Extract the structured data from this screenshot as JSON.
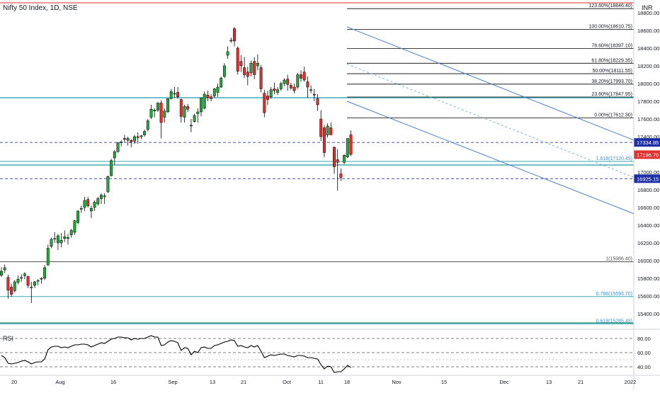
{
  "header": {
    "title": "Nifty 50 Index, 1D, NSE",
    "currency": "INR"
  },
  "theme": {
    "up": "#22ab3a",
    "down": "#e0312e",
    "outline": "#000000",
    "hline_teal": "#1c9aa6",
    "hline_blue": "#2962ff",
    "channel": "#4a7fc8",
    "fib": "#000000",
    "fib_ext": "#3c8ed4",
    "rsi": "#000000",
    "grid": "#bbbbbb"
  },
  "chart_data": {
    "type": "candlestick",
    "title": "Nifty 50 Index, 1D, NSE",
    "ylabel": "INR",
    "ylim": [
      15250,
      18950
    ],
    "yticks": [
      "15400.00",
      "15600.00",
      "15800.00",
      "16000.00",
      "16200.00",
      "16400.00",
      "16600.00",
      "16800.00",
      "17000.00",
      "17200.00",
      "17400.00",
      "17600.00",
      "17800.00",
      "18000.00",
      "18200.00",
      "18400.00",
      "18600.00",
      "18800.00"
    ],
    "xticks": [
      "20",
      "Aug",
      "16",
      "Sep",
      "13",
      "21",
      "Oct",
      "11",
      "18",
      "Nov",
      "15",
      "Dec",
      "13",
      "21",
      "2022"
    ],
    "candles": [
      [
        15835,
        15925,
        15815,
        15880
      ],
      [
        15895,
        15955,
        15860,
        15920
      ],
      [
        15810,
        15840,
        15570,
        15665
      ],
      [
        15700,
        15740,
        15590,
        15620
      ],
      [
        15660,
        15780,
        15640,
        15760
      ],
      [
        15755,
        15830,
        15730,
        15790
      ],
      [
        15800,
        15845,
        15760,
        15810
      ],
      [
        15830,
        15870,
        15790,
        15850
      ],
      [
        15820,
        15830,
        15690,
        15720
      ],
      [
        15700,
        15760,
        15520,
        15700
      ],
      [
        15720,
        15770,
        15690,
        15760
      ],
      [
        15770,
        15790,
        15720,
        15775
      ],
      [
        15800,
        15810,
        15740,
        15790
      ],
      [
        15800,
        15950,
        15780,
        15920
      ],
      [
        15950,
        16180,
        15940,
        16140
      ],
      [
        16160,
        16260,
        16140,
        16240
      ],
      [
        16250,
        16320,
        16200,
        16250
      ],
      [
        16200,
        16300,
        16120,
        16280
      ],
      [
        16200,
        16310,
        16150,
        16230
      ],
      [
        16250,
        16340,
        16210,
        16270
      ],
      [
        16250,
        16300,
        16180,
        16260
      ],
      [
        16290,
        16360,
        16260,
        16340
      ],
      [
        16320,
        16460,
        16290,
        16450
      ],
      [
        16430,
        16570,
        16410,
        16560
      ],
      [
        16580,
        16620,
        16540,
        16590
      ],
      [
        16600,
        16720,
        16560,
        16680
      ],
      [
        16690,
        16720,
        16600,
        16620
      ],
      [
        16560,
        16620,
        16480,
        16590
      ],
      [
        16600,
        16680,
        16560,
        16660
      ],
      [
        16640,
        16720,
        16620,
        16700
      ],
      [
        16700,
        16760,
        16640,
        16740
      ],
      [
        16720,
        16760,
        16640,
        16730
      ],
      [
        16780,
        16960,
        16760,
        16950
      ],
      [
        16960,
        17150,
        16950,
        17130
      ],
      [
        17160,
        17250,
        17080,
        17230
      ],
      [
        17230,
        17340,
        17220,
        17330
      ],
      [
        17330,
        17360,
        17290,
        17340
      ],
      [
        17380,
        17420,
        17340,
        17370
      ],
      [
        17360,
        17400,
        17300,
        17380
      ],
      [
        17360,
        17370,
        17280,
        17340
      ],
      [
        17350,
        17420,
        17320,
        17400
      ],
      [
        17400,
        17450,
        17320,
        17390
      ],
      [
        17400,
        17420,
        17370,
        17410
      ],
      [
        17420,
        17480,
        17400,
        17460
      ],
      [
        17480,
        17600,
        17460,
        17580
      ],
      [
        17620,
        17760,
        17600,
        17710
      ],
      [
        17690,
        17720,
        17620,
        17700
      ],
      [
        17700,
        17790,
        17680,
        17780
      ],
      [
        17780,
        17810,
        17380,
        17560
      ],
      [
        17620,
        17720,
        17560,
        17690
      ],
      [
        17680,
        17830,
        17670,
        17830
      ],
      [
        17830,
        17940,
        17820,
        17910
      ],
      [
        17880,
        17960,
        17840,
        17890
      ],
      [
        17900,
        17960,
        17830,
        17850
      ],
      [
        17820,
        17830,
        17560,
        17630
      ],
      [
        17620,
        17760,
        17560,
        17740
      ],
      [
        17740,
        17770,
        17680,
        17710
      ],
      [
        17520,
        17600,
        17450,
        17530
      ],
      [
        17570,
        17660,
        17560,
        17640
      ],
      [
        17660,
        17720,
        17560,
        17680
      ],
      [
        17680,
        17840,
        17630,
        17840
      ],
      [
        17720,
        17910,
        17710,
        17880
      ],
      [
        17870,
        17920,
        17800,
        17840
      ],
      [
        17850,
        17880,
        17800,
        17830
      ],
      [
        17860,
        17950,
        17840,
        17940
      ],
      [
        17900,
        18000,
        17850,
        17960
      ],
      [
        17960,
        18080,
        17950,
        18060
      ],
      [
        18080,
        18230,
        18060,
        18200
      ],
      [
        18320,
        18420,
        18280,
        18360
      ],
      [
        18480,
        18520,
        18460,
        18490
      ],
      [
        18620,
        18640,
        18420,
        18480
      ],
      [
        18400,
        18420,
        18100,
        18140
      ],
      [
        18250,
        18320,
        18130,
        18200
      ],
      [
        18180,
        18300,
        18060,
        18100
      ],
      [
        18130,
        18190,
        17980,
        18080
      ],
      [
        18120,
        18260,
        18080,
        18230
      ],
      [
        18250,
        18300,
        18050,
        18100
      ],
      [
        18200,
        18330,
        18150,
        18230
      ],
      [
        18180,
        18210,
        17900,
        17940
      ],
      [
        17890,
        17930,
        17620,
        17670
      ],
      [
        17860,
        17920,
        17760,
        17820
      ],
      [
        17850,
        17960,
        17830,
        17930
      ],
      [
        17940,
        18010,
        17880,
        17920
      ],
      [
        17900,
        17960,
        17870,
        17930
      ],
      [
        17940,
        18020,
        17920,
        18000
      ],
      [
        18000,
        18060,
        17970,
        18040
      ],
      [
        18050,
        18100,
        17920,
        17990
      ],
      [
        17980,
        18010,
        17930,
        17950
      ],
      [
        17960,
        18000,
        17890,
        17920
      ],
      [
        17960,
        18120,
        17940,
        18100
      ],
      [
        18100,
        18150,
        18020,
        18060
      ],
      [
        18130,
        18190,
        18020,
        18040
      ],
      [
        18020,
        18080,
        17840,
        17960
      ],
      [
        17930,
        17980,
        17890,
        17930
      ],
      [
        17880,
        17940,
        17800,
        17870
      ],
      [
        17830,
        17880,
        17690,
        17760
      ],
      [
        17600,
        17700,
        17350,
        17400
      ],
      [
        17500,
        17530,
        17170,
        17220
      ],
      [
        17420,
        17550,
        17390,
        17520
      ],
      [
        17500,
        17560,
        17420,
        17420
      ],
      [
        17280,
        17290,
        16980,
        17060
      ],
      [
        17140,
        17260,
        16790,
        17110
      ],
      [
        16980,
        17040,
        16900,
        16940
      ],
      [
        17110,
        17200,
        17090,
        17190
      ],
      [
        17170,
        17380,
        17160,
        17380
      ],
      [
        17420,
        17470,
        17180,
        17200
      ]
    ],
    "hlines": [
      {
        "label": "17334.85",
        "value": 17334.85
      },
      {
        "label": "16925.15",
        "value": 16925.15
      }
    ],
    "price_label": {
      "label": "17196.70",
      "value": 17196.7
    },
    "fib_levels": [
      {
        "label": "123.60%(18846.40)",
        "value": 18846.4
      },
      {
        "label": "100.00%(18610.75)",
        "value": 18610.75
      },
      {
        "label": "78.60%(18397.10)",
        "value": 18397.1
      },
      {
        "label": "61.80%(18229.35)",
        "value": 18229.35
      },
      {
        "label": "50.00%(18111.55)",
        "value": 18111.55
      },
      {
        "label": "38.20%(17993.70)",
        "value": 17993.7
      },
      {
        "label": "23.60%(17847.95)",
        "value": 17847.95
      },
      {
        "label": "0.00%(17612.30)",
        "value": 17612.3
      }
    ],
    "fib_ext_levels": [
      {
        "label": "1.618(17120.45)",
        "value": 17120.45
      },
      {
        "label": "1(15986.40)",
        "value": 15986.4
      },
      {
        "label": "0.786(15593.70)",
        "value": 15593.7
      },
      {
        "label": "0.618(15285.45)",
        "value": 15285.45
      }
    ],
    "rsi": {
      "label": "RSI",
      "ylim": [
        34,
        92
      ],
      "levels": [
        "40.00",
        "60.00",
        "80.00"
      ],
      "values": [
        56,
        53,
        45,
        44,
        45,
        46,
        48,
        49,
        47,
        44,
        46,
        47,
        47,
        51,
        64,
        68,
        69,
        69,
        67,
        68,
        67,
        69,
        71,
        71,
        72,
        72,
        71,
        68,
        70,
        72,
        74,
        73,
        76,
        79,
        80,
        82,
        82,
        81,
        81,
        78,
        80,
        79,
        80,
        80,
        82,
        84,
        82,
        82,
        70,
        71,
        75,
        77,
        76,
        74,
        63,
        67,
        66,
        57,
        62,
        60,
        67,
        68,
        66,
        66,
        70,
        71,
        73,
        75,
        76,
        78,
        77,
        69,
        70,
        68,
        67,
        70,
        68,
        70,
        62,
        53,
        55,
        57,
        56,
        57,
        58,
        58,
        56,
        55,
        54,
        56,
        56,
        55,
        53,
        53,
        52,
        51,
        43,
        37,
        41,
        40,
        32,
        33,
        33,
        37,
        42,
        39
      ]
    }
  }
}
